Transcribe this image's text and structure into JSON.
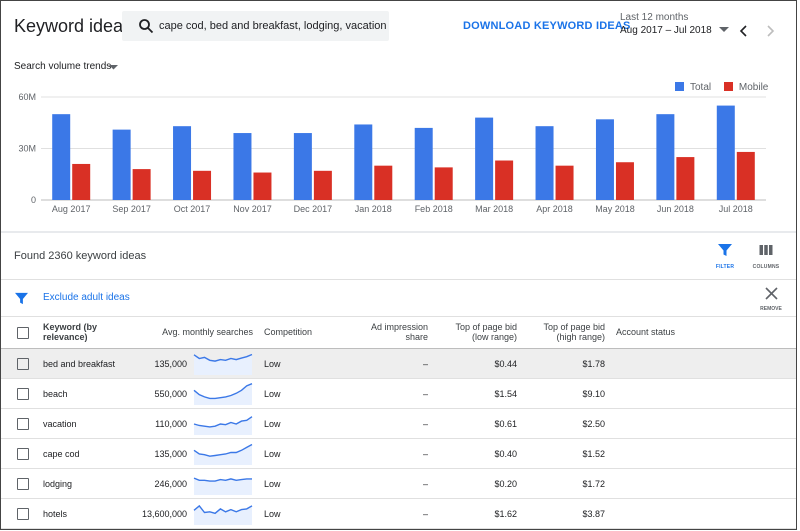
{
  "header": {
    "title": "Keyword ideas",
    "search_value": "cape cod, bed and breakfast, lodging, vacation, beach",
    "download_label": "DOWNLOAD KEYWORD IDEAS",
    "date_label": "Last 12 months",
    "date_range": "Aug 2017 – Jul 2018"
  },
  "chart": {
    "dropdown_label": "Search volume trends",
    "legend": [
      {
        "name": "Total",
        "color": "#3b78e7"
      },
      {
        "name": "Mobile",
        "color": "#d93025"
      }
    ]
  },
  "chart_data": {
    "type": "bar",
    "categories": [
      "Aug 2017",
      "Sep 2017",
      "Oct 2017",
      "Nov 2017",
      "Dec 2017",
      "Jan 2018",
      "Feb 2018",
      "Mar 2018",
      "Apr 2018",
      "May 2018",
      "Jun 2018",
      "Jul 2018"
    ],
    "series": [
      {
        "name": "Total",
        "values": [
          50,
          41,
          43,
          39,
          39,
          44,
          42,
          48,
          43,
          47,
          50,
          55
        ]
      },
      {
        "name": "Mobile",
        "values": [
          21,
          18,
          17,
          16,
          17,
          20,
          19,
          23,
          20,
          22,
          25,
          28
        ]
      }
    ],
    "y_ticks": [
      "0",
      "30M",
      "60M"
    ],
    "ylim": [
      0,
      60
    ],
    "y_unit": "M",
    "grid": true,
    "legend_position": "top-right"
  },
  "results": {
    "found_text": "Found 2360 keyword ideas",
    "filter_label": "FILTER",
    "columns_label": "COLUMNS",
    "filter_chip": "Exclude adult ideas",
    "remove_label": "REMOVE"
  },
  "table": {
    "headers": {
      "keyword": "Keyword (by relevance)",
      "avg": "Avg. monthly searches",
      "competition": "Competition",
      "impression": "Ad impression share",
      "bid_low": "Top of page bid (low range)",
      "bid_high": "Top of page bid (high range)",
      "status": "Account status"
    },
    "rows": [
      {
        "keyword": "bed and breakfast",
        "avg": "135,000",
        "competition": "Low",
        "impression": "–",
        "bid_low": "$0.44",
        "bid_high": "$1.78",
        "trend": [
          55,
          45,
          48,
          40,
          38,
          42,
          40,
          45,
          42,
          46,
          50,
          56
        ]
      },
      {
        "keyword": "beach",
        "avg": "550,000",
        "competition": "Low",
        "impression": "–",
        "bid_low": "$1.54",
        "bid_high": "$9.10",
        "trend": [
          40,
          28,
          22,
          18,
          18,
          20,
          22,
          26,
          32,
          40,
          52,
          58
        ]
      },
      {
        "keyword": "vacation",
        "avg": "110,000",
        "competition": "Low",
        "impression": "–",
        "bid_low": "$0.61",
        "bid_high": "$2.50",
        "trend": [
          30,
          26,
          24,
          22,
          24,
          30,
          28,
          34,
          30,
          38,
          40,
          50
        ]
      },
      {
        "keyword": "cape cod",
        "avg": "135,000",
        "competition": "Low",
        "impression": "–",
        "bid_low": "$0.40",
        "bid_high": "$1.52",
        "trend": [
          40,
          30,
          28,
          24,
          26,
          28,
          30,
          34,
          34,
          40,
          48,
          56
        ]
      },
      {
        "keyword": "lodging",
        "avg": "246,000",
        "competition": "Low",
        "impression": "–",
        "bid_low": "$0.20",
        "bid_high": "$1.72",
        "trend": [
          46,
          40,
          40,
          38,
          38,
          42,
          40,
          44,
          40,
          42,
          44,
          44
        ]
      },
      {
        "keyword": "hotels",
        "avg": "13,600,000",
        "competition": "Low",
        "impression": "–",
        "bid_low": "$1.62",
        "bid_high": "$3.87",
        "trend": [
          40,
          52,
          34,
          36,
          32,
          44,
          36,
          42,
          36,
          42,
          44,
          52
        ]
      }
    ]
  }
}
